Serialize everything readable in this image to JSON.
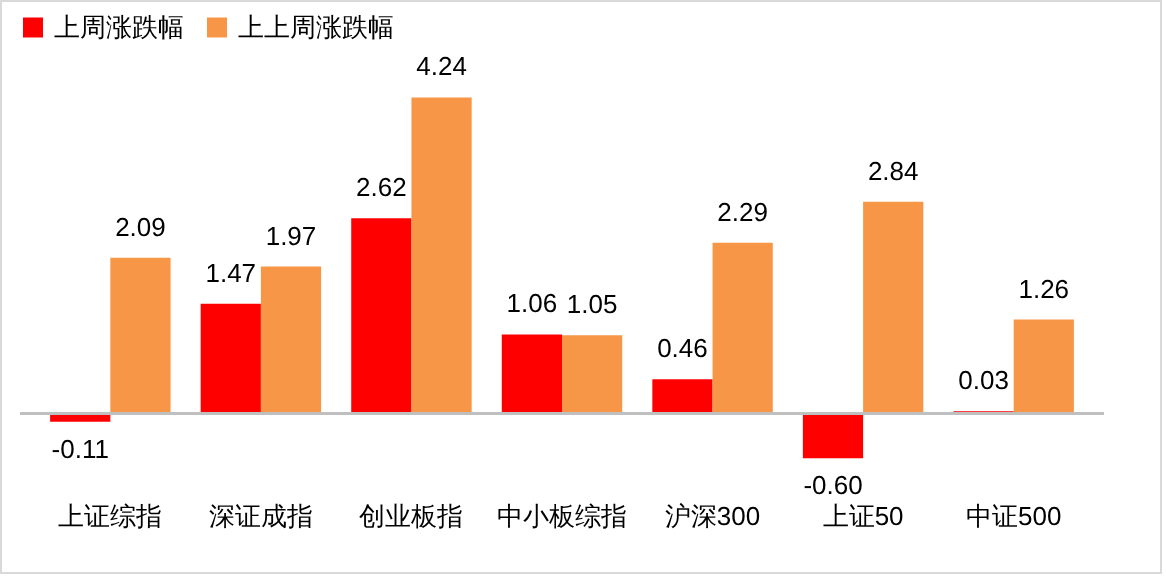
{
  "chart_data": {
    "type": "bar",
    "categories": [
      "上证综指",
      "深证成指",
      "创业板指",
      "中小板综指",
      "沪深300",
      "上证50",
      "中证500"
    ],
    "series": [
      {
        "name": "上周涨跌幅",
        "color": "#ff0000",
        "values": [
          -0.11,
          1.47,
          2.62,
          1.06,
          0.46,
          -0.6,
          0.03
        ],
        "value_labels": [
          "-0.11",
          "1.47",
          "2.62",
          "1.06",
          "0.46",
          "-0.60",
          "0.03"
        ]
      },
      {
        "name": "上上周涨跌幅",
        "color": "#f79646",
        "values": [
          2.09,
          1.97,
          4.24,
          1.05,
          2.29,
          2.84,
          1.26
        ],
        "value_labels": [
          "2.09",
          "1.97",
          "4.24",
          "1.05",
          "2.29",
          "2.84",
          "1.26"
        ]
      }
    ],
    "legend": "top",
    "grid": false,
    "tick_labels": "x",
    "ref_lines": [
      {
        "axis": "y",
        "value": 0,
        "color": "#bfbfbf"
      }
    ]
  }
}
